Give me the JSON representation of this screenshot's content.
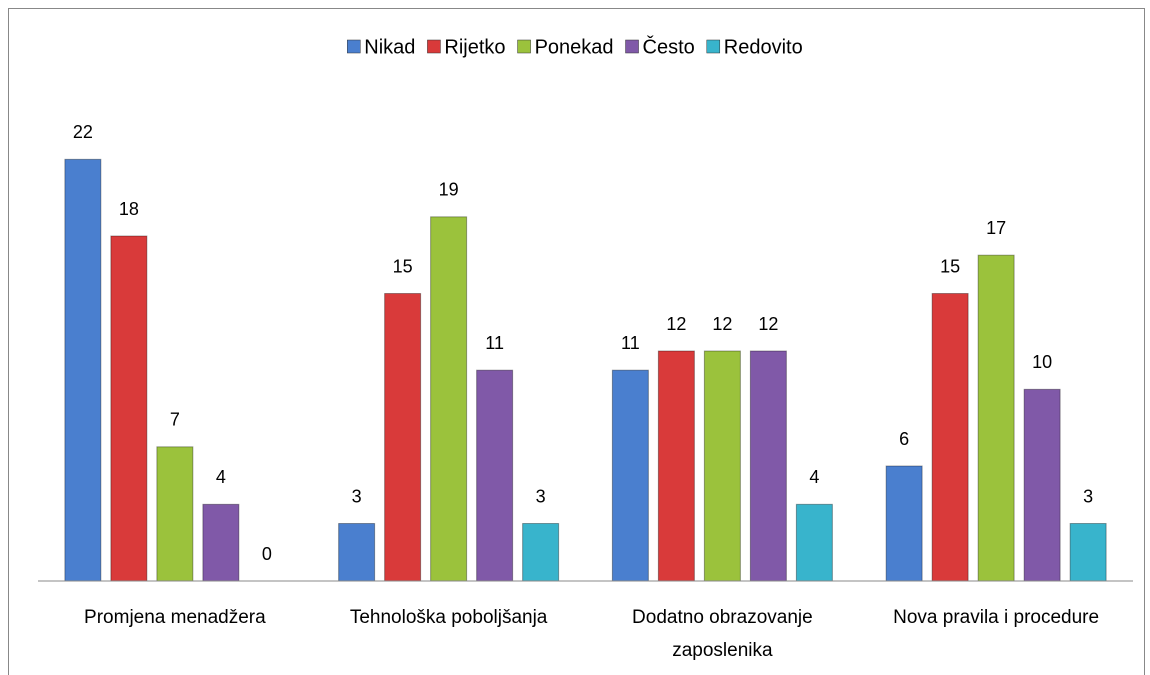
{
  "chart_data": {
    "type": "bar",
    "categories": [
      "Promjena menadžera",
      "Tehnološka poboljšanja",
      "Dodatno obrazovanje zaposlenika",
      "Nova pravila i procedure"
    ],
    "series": [
      {
        "name": "Nikad",
        "color": "#4a7fcf",
        "values": [
          22,
          3,
          11,
          6
        ]
      },
      {
        "name": "Rijetko",
        "color": "#d93a3a",
        "values": [
          18,
          15,
          12,
          15
        ]
      },
      {
        "name": "Ponekad",
        "color": "#9bc23c",
        "values": [
          7,
          19,
          12,
          17
        ]
      },
      {
        "name": "Često",
        "color": "#8059a8",
        "values": [
          4,
          11,
          12,
          10
        ]
      },
      {
        "name": "Redovito",
        "color": "#38b4cc",
        "values": [
          0,
          3,
          4,
          3
        ]
      }
    ],
    "ylim": [
      0,
      24
    ],
    "legend": "top"
  }
}
